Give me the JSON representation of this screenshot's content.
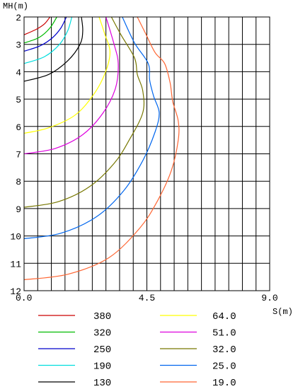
{
  "chart_data": {
    "type": "line",
    "xlabel": "S(m)",
    "ylabel": "MH(m)",
    "xlim": [
      0.0,
      9.0
    ],
    "ylim": [
      2,
      12
    ],
    "y_inverted": true,
    "grid": true,
    "x_tick_labels": [
      "0.0",
      "4.5",
      "9.0"
    ],
    "x_ticks": [
      0.0,
      4.5,
      9.0
    ],
    "y_ticks": [
      2,
      3,
      4,
      5,
      6,
      7,
      8,
      9,
      10,
      11,
      12
    ],
    "y_tick_labels": [
      "2",
      "3",
      "4",
      "5",
      "6",
      "7",
      "8",
      "9",
      "10",
      "11",
      "12"
    ],
    "legend_placement": "bottom",
    "series": [
      {
        "name": "380",
        "color": "#cc0000",
        "points": [
          [
            0.0,
            2.65
          ],
          [
            0.45,
            2.45
          ],
          [
            0.75,
            2.25
          ],
          [
            0.95,
            2.0
          ]
        ]
      },
      {
        "name": "320",
        "color": "#00bb00",
        "points": [
          [
            0.0,
            2.95
          ],
          [
            0.55,
            2.75
          ],
          [
            0.95,
            2.4
          ],
          [
            1.2,
            2.0
          ]
        ]
      },
      {
        "name": "250",
        "color": "#0000cc",
        "points": [
          [
            0.0,
            3.25
          ],
          [
            0.6,
            3.05
          ],
          [
            1.05,
            2.75
          ],
          [
            1.35,
            2.4
          ],
          [
            1.55,
            2.0
          ]
        ]
      },
      {
        "name": "190",
        "color": "#00dddd",
        "points": [
          [
            0.0,
            3.7
          ],
          [
            0.75,
            3.45
          ],
          [
            1.3,
            3.0
          ],
          [
            1.6,
            2.5
          ],
          [
            1.75,
            2.0
          ]
        ]
      },
      {
        "name": "130",
        "color": "#000000",
        "points": [
          [
            0.0,
            4.35
          ],
          [
            0.9,
            4.1
          ],
          [
            1.6,
            3.6
          ],
          [
            2.05,
            3.0
          ],
          [
            2.15,
            2.5
          ],
          [
            2.1,
            2.0
          ]
        ]
      },
      {
        "name": "64.0",
        "color": "#ffff00",
        "points": [
          [
            0.0,
            6.25
          ],
          [
            0.9,
            6.05
          ],
          [
            1.85,
            5.6
          ],
          [
            2.5,
            4.9
          ],
          [
            2.95,
            4.1
          ],
          [
            3.15,
            3.3
          ],
          [
            2.95,
            2.6
          ],
          [
            2.75,
            2.0
          ]
        ]
      },
      {
        "name": "51.0",
        "color": "#dd00dd",
        "points": [
          [
            0.0,
            7.0
          ],
          [
            1.15,
            6.8
          ],
          [
            2.15,
            6.3
          ],
          [
            2.9,
            5.5
          ],
          [
            3.35,
            4.6
          ],
          [
            3.45,
            3.7
          ],
          [
            3.3,
            3.0
          ],
          [
            3.0,
            2.0
          ]
        ]
      },
      {
        "name": "32.0",
        "color": "#777700",
        "points": [
          [
            0.0,
            8.95
          ],
          [
            1.25,
            8.75
          ],
          [
            2.4,
            8.2
          ],
          [
            3.3,
            7.35
          ],
          [
            3.85,
            6.5
          ],
          [
            4.35,
            5.5
          ],
          [
            4.35,
            4.7
          ],
          [
            4.15,
            4.1
          ],
          [
            4.05,
            3.5
          ],
          [
            3.55,
            2.65
          ],
          [
            3.2,
            2.0
          ]
        ]
      },
      {
        "name": "25.0",
        "color": "#0066ee",
        "points": [
          [
            0.0,
            10.1
          ],
          [
            1.35,
            9.9
          ],
          [
            2.65,
            9.3
          ],
          [
            3.65,
            8.35
          ],
          [
            4.35,
            7.25
          ],
          [
            4.8,
            6.2
          ],
          [
            4.95,
            5.5
          ],
          [
            4.75,
            4.9
          ],
          [
            4.6,
            4.3
          ],
          [
            4.55,
            3.7
          ],
          [
            4.05,
            2.95
          ],
          [
            3.6,
            2.0
          ]
        ]
      },
      {
        "name": "19.0",
        "color": "#ff6633",
        "points": [
          [
            0.0,
            11.6
          ],
          [
            1.6,
            11.4
          ],
          [
            3.1,
            10.8
          ],
          [
            4.25,
            9.7
          ],
          [
            4.9,
            8.7
          ],
          [
            5.4,
            7.6
          ],
          [
            5.65,
            6.5
          ],
          [
            5.65,
            5.8
          ],
          [
            5.45,
            5.1
          ],
          [
            5.35,
            4.4
          ],
          [
            5.15,
            3.7
          ],
          [
            4.8,
            3.3
          ],
          [
            4.45,
            2.6
          ],
          [
            4.15,
            2.0
          ]
        ]
      }
    ]
  }
}
